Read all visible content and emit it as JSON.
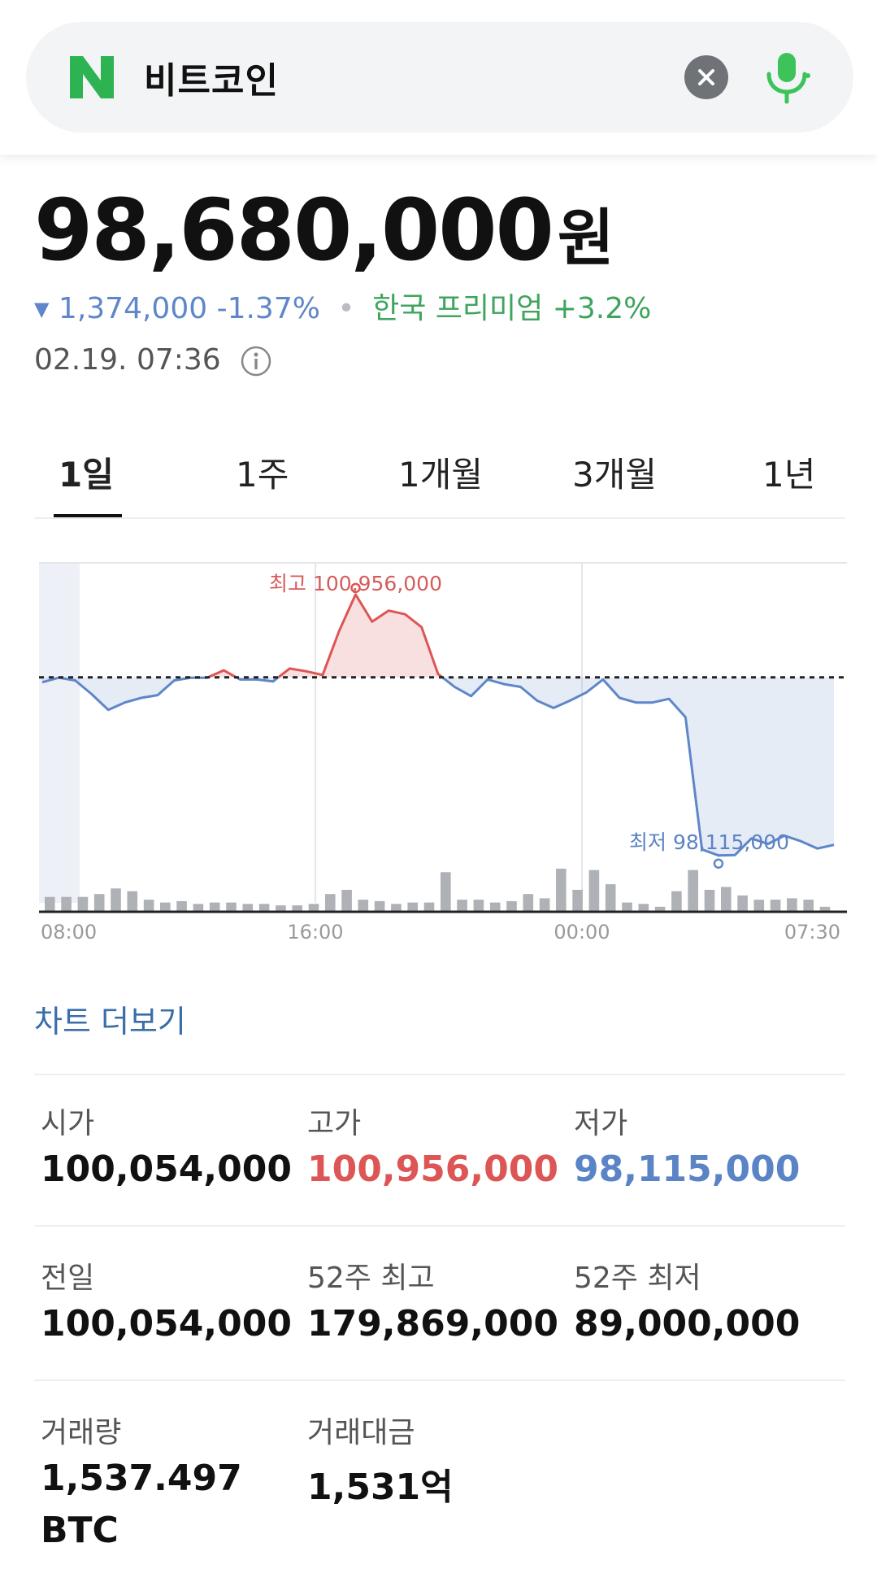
{
  "search": {
    "query": "비트코인"
  },
  "price": {
    "value": "98,680,000",
    "unit": "원"
  },
  "change": {
    "amount": "1,374,000",
    "percent": "-1.37%",
    "premium": "한국 프리미엄 +3.2%"
  },
  "timestamp": "02.19. 07:36",
  "tabs": [
    "1일",
    "1주",
    "1개월",
    "3개월",
    "1년"
  ],
  "chart_data": {
    "type": "line",
    "x_labels": [
      "08:00",
      "16:00",
      "00:00",
      "07:30"
    ],
    "high_label": "최고 100,956,000",
    "low_label": "최저 98,115,000",
    "reference": 100054000,
    "ylim": [
      97900000,
      101300000
    ],
    "price": [
      100000000,
      100050000,
      100020000,
      99870000,
      99700000,
      99780000,
      99830000,
      99860000,
      100020000,
      100050000,
      100050000,
      100130000,
      100030000,
      100030000,
      100010000,
      100150000,
      100120000,
      100080000,
      100560000,
      100956000,
      100660000,
      100780000,
      100740000,
      100600000,
      100090000,
      99950000,
      99850000,
      100030000,
      99980000,
      99950000,
      99800000,
      99720000,
      99800000,
      99890000,
      100030000,
      99830000,
      99780000,
      99780000,
      99820000,
      99620000,
      98180000,
      98115000,
      98120000,
      98300000,
      98240000,
      98330000,
      98270000,
      98190000,
      98230000
    ],
    "volume": [
      20,
      20,
      20,
      24,
      32,
      28,
      16,
      12,
      14,
      10,
      12,
      12,
      10,
      10,
      8,
      8,
      10,
      24,
      30,
      16,
      14,
      10,
      12,
      12,
      55,
      16,
      16,
      12,
      14,
      24,
      18,
      60,
      30,
      58,
      38,
      12,
      10,
      6,
      28,
      58,
      30,
      34,
      22,
      16,
      16,
      18,
      16,
      6
    ]
  },
  "chart_more": "차트 더보기",
  "stats": [
    {
      "label": "시가",
      "value": "100,054,000",
      "tone": "normal"
    },
    {
      "label": "고가",
      "value": "100,956,000",
      "tone": "red"
    },
    {
      "label": "저가",
      "value": "98,115,000",
      "tone": "blue"
    },
    {
      "label": "전일",
      "value": "100,054,000",
      "tone": "normal"
    },
    {
      "label": "52주 최고",
      "value": "179,869,000",
      "tone": "normal"
    },
    {
      "label": "52주 최저",
      "value": "89,000,000",
      "tone": "normal"
    },
    {
      "label": "거래량",
      "value": "1,537.497",
      "unit": "BTC",
      "tone": "normal"
    },
    {
      "label": "거래대금",
      "value": "1,531억",
      "tone": "normal"
    }
  ],
  "colors": {
    "accent_green": "#3fa45d",
    "down_blue": "#5f86c8",
    "up_red": "#dd5555",
    "naver_green": "#03c75a"
  }
}
